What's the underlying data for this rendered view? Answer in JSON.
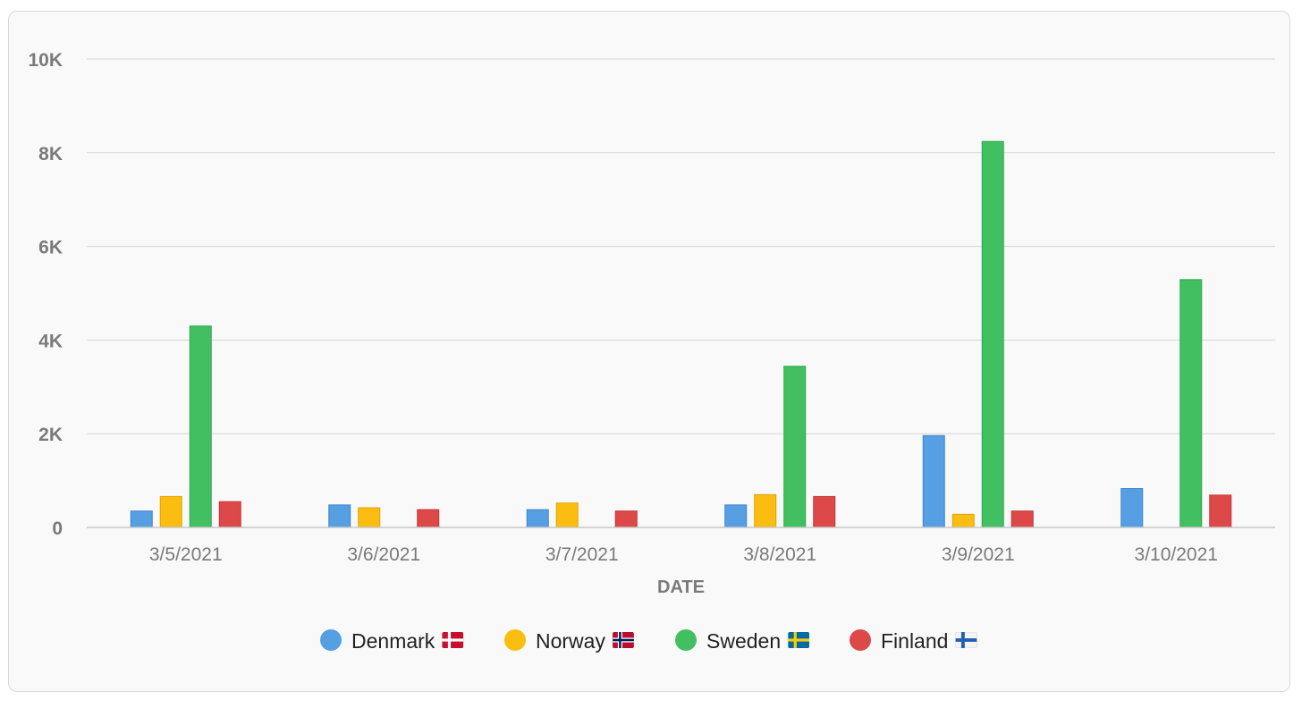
{
  "chart_data": {
    "type": "bar",
    "title": "",
    "xlabel": "DATE",
    "ylabel": "",
    "ylim": [
      0,
      10000
    ],
    "y_ticks": [
      0,
      2000,
      4000,
      6000,
      8000,
      10000
    ],
    "y_tick_labels": [
      "0",
      "2K",
      "4K",
      "6K",
      "8K",
      "10K"
    ],
    "grid": true,
    "legend_position": "bottom",
    "categories": [
      "3/5/2021",
      "3/6/2021",
      "3/7/2021",
      "3/8/2021",
      "3/9/2021",
      "3/10/2021"
    ],
    "series": [
      {
        "name": "Denmark",
        "flag": "denmark-flag-icon",
        "color": "#569fe3",
        "border": "#3f86cc",
        "values": [
          350,
          480,
          380,
          480,
          1960,
          830
        ]
      },
      {
        "name": "Norway",
        "flag": "norway-flag-icon",
        "color": "#fbbd0f",
        "border": "#dfa400",
        "values": [
          660,
          420,
          520,
          700,
          280,
          0
        ]
      },
      {
        "name": "Sweden",
        "flag": "sweden-flag-icon",
        "color": "#42c061",
        "border": "#2ea84d",
        "values": [
          4300,
          0,
          0,
          3440,
          8240,
          5290
        ]
      },
      {
        "name": "Finland",
        "flag": "finland-flag-icon",
        "color": "#dd4848",
        "border": "#c43434",
        "values": [
          550,
          380,
          350,
          660,
          350,
          690
        ]
      }
    ]
  }
}
